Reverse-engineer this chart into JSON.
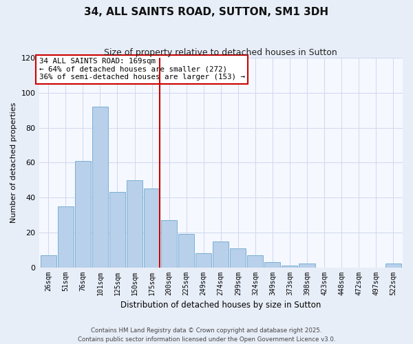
{
  "title": "34, ALL SAINTS ROAD, SUTTON, SM1 3DH",
  "subtitle": "Size of property relative to detached houses in Sutton",
  "xlabel": "Distribution of detached houses by size in Sutton",
  "ylabel": "Number of detached properties",
  "bar_labels": [
    "26sqm",
    "51sqm",
    "76sqm",
    "101sqm",
    "125sqm",
    "150sqm",
    "175sqm",
    "200sqm",
    "225sqm",
    "249sqm",
    "274sqm",
    "299sqm",
    "324sqm",
    "349sqm",
    "373sqm",
    "398sqm",
    "423sqm",
    "448sqm",
    "472sqm",
    "497sqm",
    "522sqm"
  ],
  "bar_values": [
    7,
    35,
    61,
    92,
    43,
    50,
    45,
    27,
    19,
    8,
    15,
    11,
    7,
    3,
    1,
    2,
    0,
    0,
    0,
    0,
    2
  ],
  "bar_color": "#b8d0ea",
  "bar_edge_color": "#7aafd4",
  "highlight_line_color": "#cc0000",
  "ylim": [
    0,
    120
  ],
  "yticks": [
    0,
    20,
    40,
    60,
    80,
    100,
    120
  ],
  "annotation_title": "34 ALL SAINTS ROAD: 169sqm",
  "annotation_line1": "← 64% of detached houses are smaller (272)",
  "annotation_line2": "36% of semi-detached houses are larger (153) →",
  "annotation_box_color": "#ffffff",
  "annotation_box_edge": "#cc0000",
  "footer1": "Contains HM Land Registry data © Crown copyright and database right 2025.",
  "footer2": "Contains public sector information licensed under the Open Government Licence v3.0.",
  "bg_color": "#e8eef8",
  "plot_bg_color": "#f5f8ff",
  "grid_color": "#d0d8ee"
}
